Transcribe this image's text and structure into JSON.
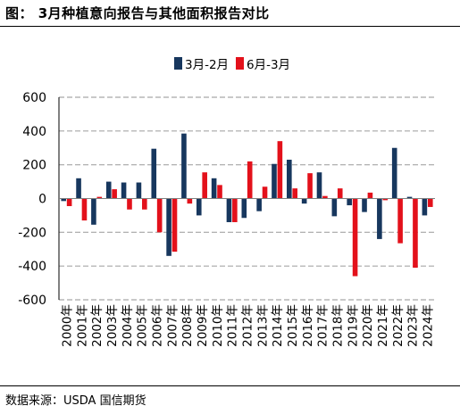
{
  "figure": {
    "title": "图：  3月种植意向报告与其他面积报告对比",
    "source": "数据来源：USDA 国信期货"
  },
  "chart_data": {
    "type": "bar",
    "categories": [
      "2000年",
      "2001年",
      "2002年",
      "2003年",
      "2004年",
      "2005年",
      "2006年",
      "2007年",
      "2008年",
      "2009年",
      "2010年",
      "2011年",
      "2012年",
      "2013年",
      "2014年",
      "2015年",
      "2016年",
      "2017年",
      "2018年",
      "2019年",
      "2020年",
      "2021年",
      "2022年",
      "2023年",
      "2024年"
    ],
    "series": [
      {
        "name": "3月-2月",
        "color": "#17375e",
        "values": [
          -15,
          120,
          -155,
          100,
          95,
          95,
          295,
          -340,
          385,
          -100,
          120,
          -140,
          -115,
          -75,
          205,
          230,
          -30,
          155,
          -105,
          -40,
          -80,
          -240,
          300,
          10,
          -100
        ]
      },
      {
        "name": "6月-3月",
        "color": "#e3111b",
        "values": [
          -45,
          -130,
          10,
          55,
          -65,
          -65,
          -200,
          -315,
          -30,
          155,
          80,
          -140,
          220,
          70,
          340,
          60,
          150,
          15,
          60,
          -460,
          35,
          -10,
          -265,
          -410,
          -50
        ]
      }
    ],
    "ylim": [
      -600,
      600
    ],
    "yticks": [
      -600,
      -400,
      -200,
      0,
      200,
      400,
      600
    ],
    "ytick_labels": [
      "-600",
      "-400",
      "-200",
      "0",
      "200",
      "400",
      "600"
    ],
    "grid": "horizontal dashed",
    "legend": "top-center"
  }
}
